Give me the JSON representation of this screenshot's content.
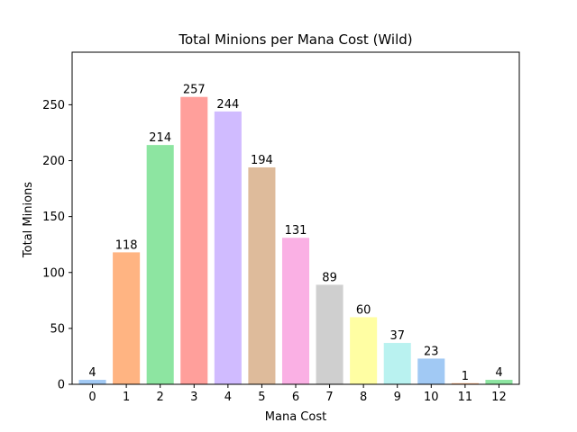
{
  "chart_data": {
    "type": "bar",
    "title": "Total Minions per Mana Cost (Wild)",
    "xlabel": "Mana Cost",
    "ylabel": "Total Minions",
    "categories": [
      "0",
      "1",
      "2",
      "3",
      "4",
      "5",
      "6",
      "7",
      "8",
      "9",
      "10",
      "11",
      "12"
    ],
    "values": [
      4,
      118,
      214,
      257,
      244,
      194,
      131,
      89,
      60,
      37,
      23,
      1,
      4
    ],
    "ylim": [
      0,
      297
    ],
    "yticks": [
      0,
      50,
      100,
      150,
      200,
      250
    ],
    "grid": false,
    "bar_colors": [
      "#a1c9f4",
      "#ffb482",
      "#8de5a1",
      "#ff9f9b",
      "#d0bbff",
      "#debb9b",
      "#fab0e4",
      "#cfcfcf",
      "#fffea3",
      "#b9f2f0",
      "#a1c9f4",
      "#ffb482",
      "#8de5a1"
    ]
  }
}
